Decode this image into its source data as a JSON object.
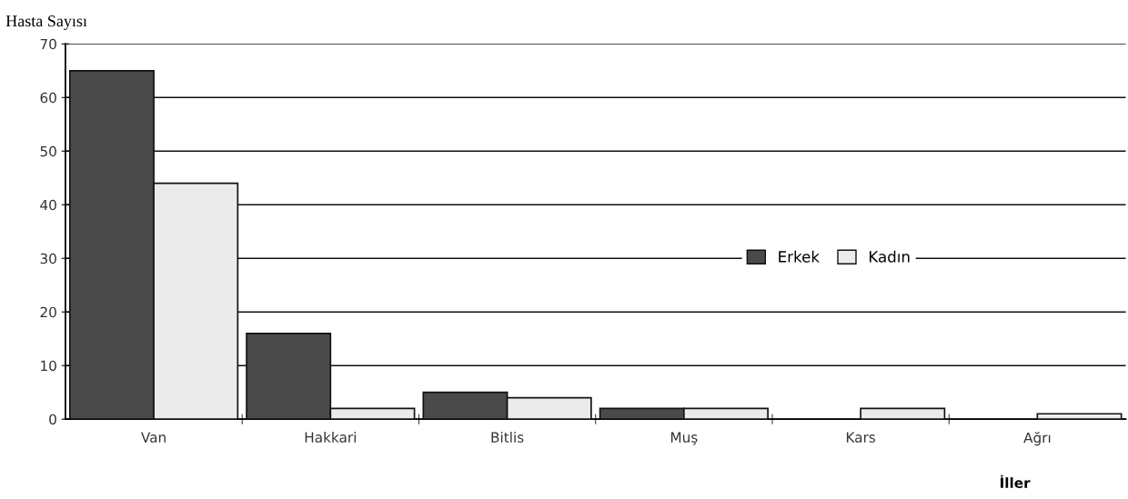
{
  "chart_data": {
    "type": "bar",
    "ylabel": "Hasta Sayısı",
    "xlabel": "İller",
    "categories": [
      "Van",
      "Hakkari",
      "Bitlis",
      "Muş",
      "Kars",
      "Ağrı"
    ],
    "series": [
      {
        "name": "Erkek",
        "color": "#4a4a4a",
        "values": [
          65,
          16,
          5,
          2,
          0,
          0
        ]
      },
      {
        "name": "Kadın",
        "color": "#ebebeb",
        "values": [
          44,
          2,
          4,
          2,
          2,
          1
        ]
      }
    ],
    "ylim": [
      0,
      70
    ],
    "yticks": [
      0,
      10,
      20,
      30,
      40,
      50,
      60,
      70
    ],
    "grid": "y",
    "legend": "right"
  }
}
